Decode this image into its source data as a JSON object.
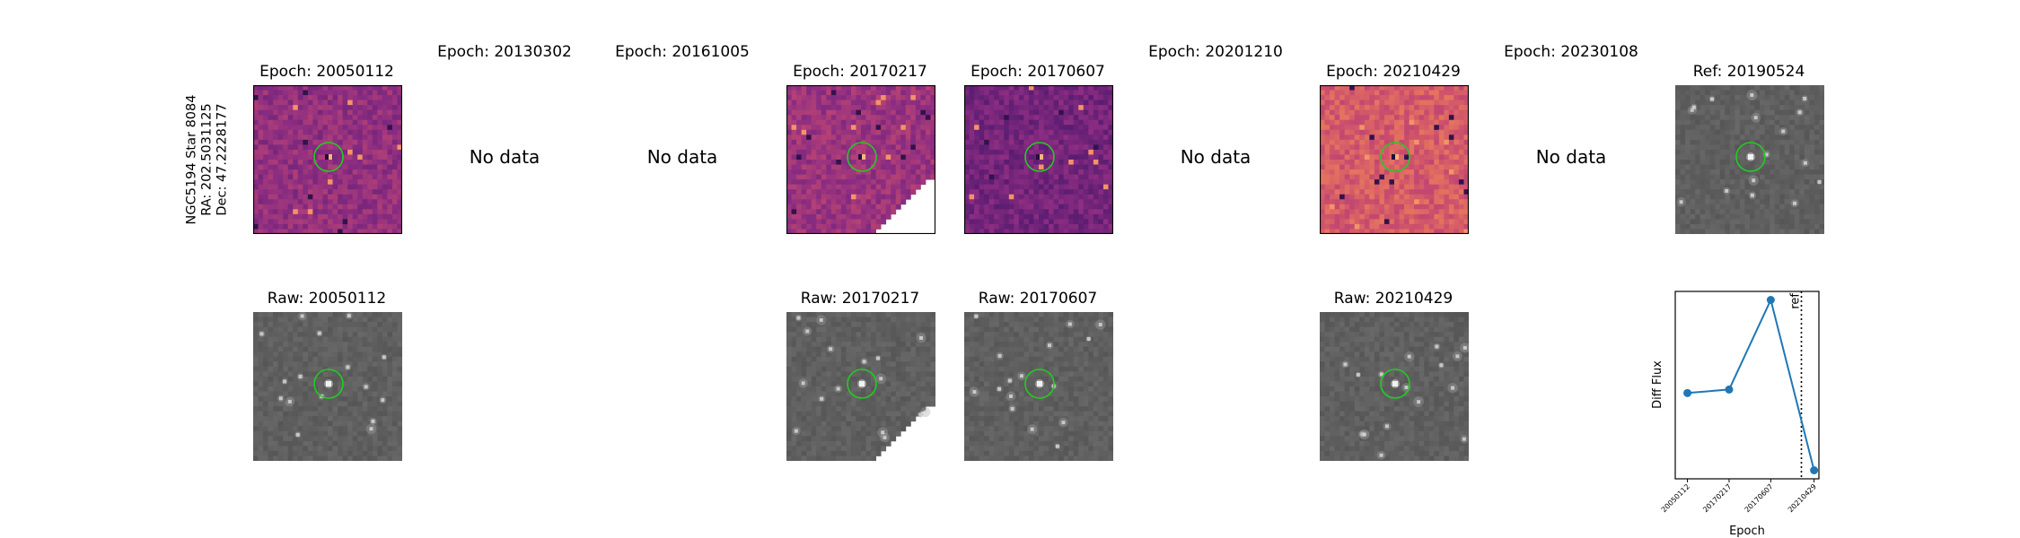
{
  "star_label": {
    "line1": "NGC5194 Star 8084",
    "line2": "RA: 202.5031125",
    "line3": "Dec: 47.2228177"
  },
  "no_data_text": "No data",
  "diff_panels": [
    {
      "title": "Epoch: 20050112",
      "has_data": true
    },
    {
      "title": "Epoch: 20130302",
      "has_data": false
    },
    {
      "title": "Epoch: 20161005",
      "has_data": false
    },
    {
      "title": "Epoch: 20170217",
      "has_data": true
    },
    {
      "title": "Epoch: 20170607",
      "has_data": true
    },
    {
      "title": "Epoch: 20201210",
      "has_data": false
    },
    {
      "title": "Epoch: 20210429",
      "has_data": true
    },
    {
      "title": "Epoch: 20230108",
      "has_data": false
    }
  ],
  "ref_panel": {
    "title": "Ref: 20190524"
  },
  "raw_panels": [
    {
      "title": "Raw: 20050112"
    },
    {
      "title": "Raw: 20170217"
    },
    {
      "title": "Raw: 20170607"
    },
    {
      "title": "Raw: 20210429"
    }
  ],
  "colors": {
    "circle": "#22cc22",
    "line": "#1f77b4"
  },
  "chart_data": {
    "type": "line",
    "categories": [
      "20050112",
      "20170217",
      "20170607",
      "20210429"
    ],
    "values": [
      0.42,
      0.44,
      0.95,
      -0.02
    ],
    "xlabel": "Epoch",
    "ylabel": "Diff Flux",
    "ref_marker": {
      "label": "ref",
      "position_between": [
        "20170607",
        "20210429"
      ]
    },
    "y_ticks_shown": false,
    "grid": false
  }
}
